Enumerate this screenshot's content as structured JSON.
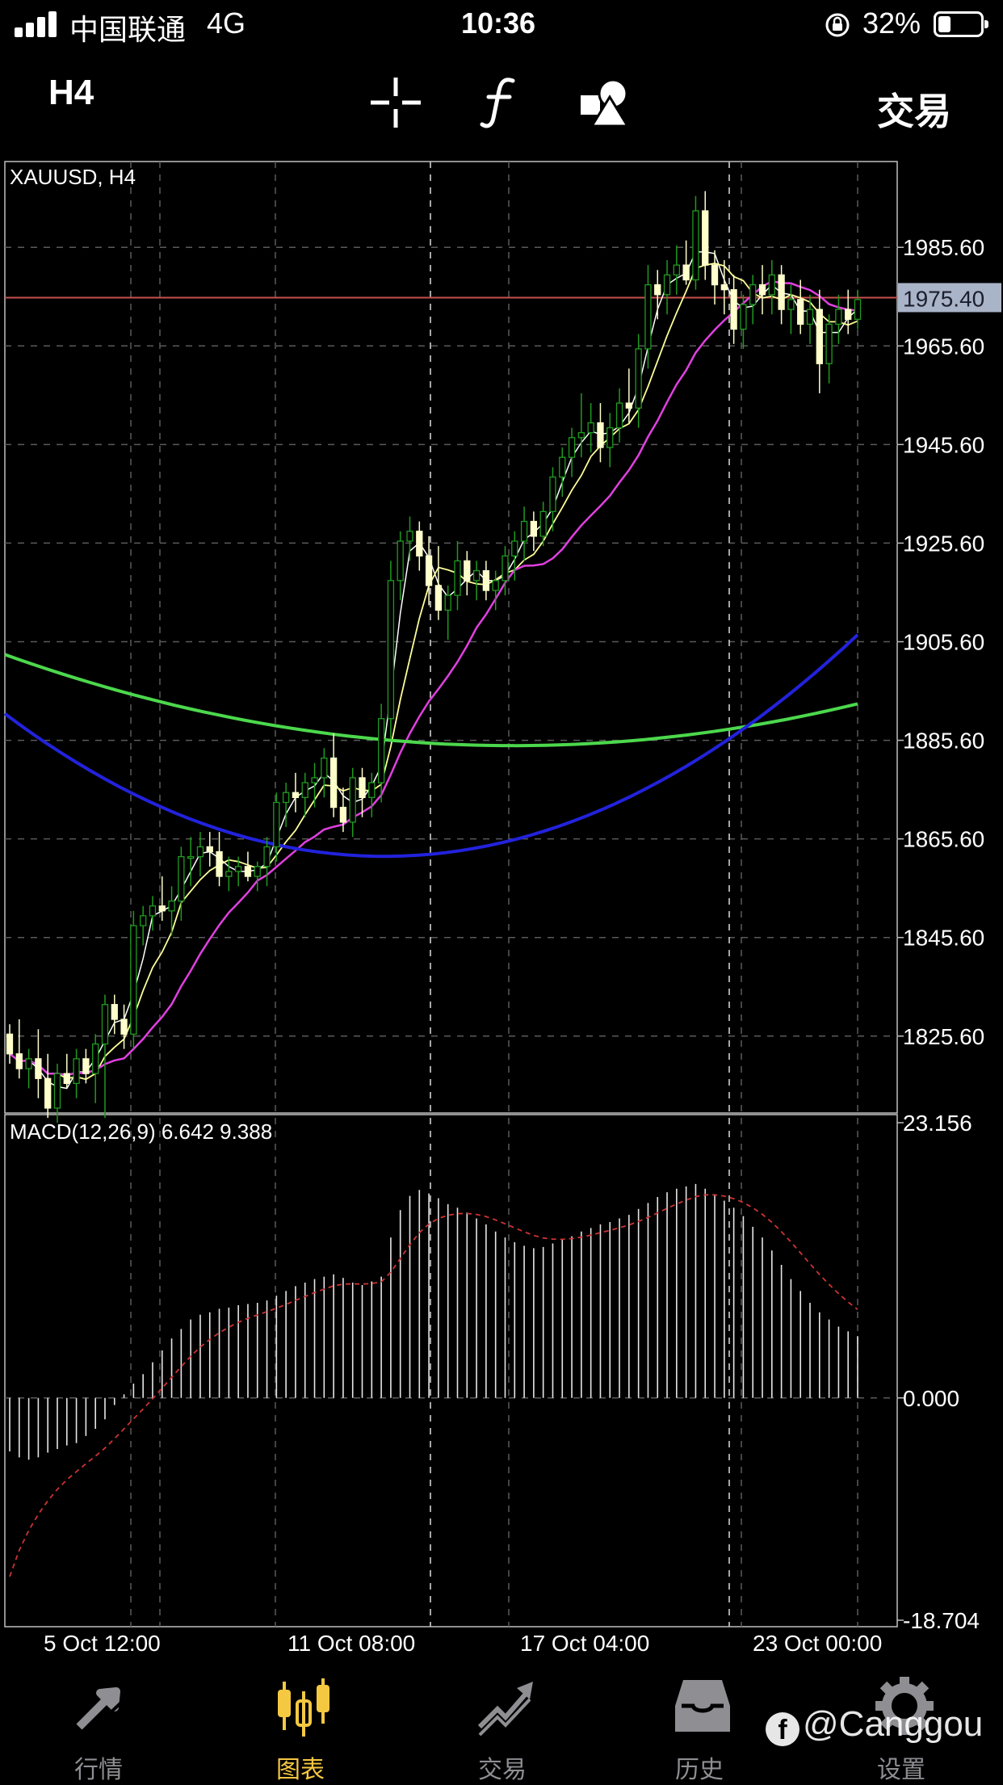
{
  "status_bar": {
    "carrier": "中国联通",
    "network": "4G",
    "time": "10:36",
    "battery": "32%",
    "battery_level": 0.32
  },
  "toolbar": {
    "timeframe": "H4",
    "crosshair_icon": "crosshair-icon",
    "indicator_icon": "function-icon",
    "objects_icon": "shapes-icon",
    "trade_label": "交易"
  },
  "chart_data": [
    {
      "type": "candlestick",
      "title": "XAUUSD, H4",
      "symbol": "XAUUSD",
      "timeframe": "H4",
      "y_ticks": [
        "1985.60",
        "1965.60",
        "1945.60",
        "1925.60",
        "1905.60",
        "1885.60",
        "1865.60",
        "1845.60",
        "1825.60"
      ],
      "ylim": [
        1810,
        2003
      ],
      "current_price": "1975.40",
      "x_ticks": [
        "5 Oct 12:00",
        "11 Oct 08:00",
        "17 Oct 04:00",
        "23 Oct 00:00"
      ],
      "grid": true,
      "colors": {
        "bull": "#1f9a1f",
        "bear": "#ffffcc",
        "ma_fast": "#ffffff",
        "ma_mid": "#ffff99",
        "ma_slow": "#e040e0",
        "ma_green": "#4cd84c",
        "ma_blue": "#2222dd",
        "price_line": "#c85050"
      },
      "candles": [
        [
          1826,
          1828,
          1820,
          1822
        ],
        [
          1822,
          1829,
          1817,
          1819
        ],
        [
          1819,
          1823,
          1815,
          1821
        ],
        [
          1821,
          1827,
          1813,
          1817
        ],
        [
          1817,
          1822,
          1809,
          1811
        ],
        [
          1811,
          1820,
          1808,
          1818
        ],
        [
          1818,
          1822,
          1815,
          1816
        ],
        [
          1816,
          1823,
          1813,
          1821
        ],
        [
          1821,
          1823,
          1816,
          1818
        ],
        [
          1818,
          1826,
          1812,
          1824
        ],
        [
          1824,
          1834,
          1809,
          1832
        ],
        [
          1832,
          1834,
          1826,
          1829
        ],
        [
          1829,
          1832,
          1823,
          1826
        ],
        [
          1826,
          1851,
          1823,
          1848
        ],
        [
          1848,
          1852,
          1844,
          1850
        ],
        [
          1850,
          1854,
          1847,
          1852
        ],
        [
          1852,
          1858,
          1849,
          1851
        ],
        [
          1851,
          1856,
          1846,
          1853
        ],
        [
          1853,
          1864,
          1849,
          1862
        ],
        [
          1862,
          1866,
          1856,
          1862
        ],
        [
          1862,
          1867,
          1858,
          1864
        ],
        [
          1864,
          1867,
          1860,
          1863
        ],
        [
          1863,
          1867,
          1856,
          1858
        ],
        [
          1858,
          1862,
          1855,
          1859
        ],
        [
          1859,
          1862,
          1856,
          1860
        ],
        [
          1860,
          1863,
          1857,
          1858
        ],
        [
          1858,
          1861,
          1855,
          1860
        ],
        [
          1860,
          1866,
          1856,
          1864
        ],
        [
          1864,
          1875,
          1861,
          1873
        ],
        [
          1873,
          1877,
          1868,
          1875
        ],
        [
          1875,
          1879,
          1871,
          1874
        ],
        [
          1874,
          1879,
          1870,
          1877
        ],
        [
          1877,
          1881,
          1872,
          1878
        ],
        [
          1878,
          1884,
          1874,
          1882
        ],
        [
          1882,
          1887,
          1870,
          1872
        ],
        [
          1872,
          1876,
          1867,
          1869
        ],
        [
          1869,
          1880,
          1866,
          1878
        ],
        [
          1878,
          1880,
          1870,
          1874
        ],
        [
          1874,
          1879,
          1870,
          1877
        ],
        [
          1877,
          1893,
          1873,
          1890
        ],
        [
          1890,
          1922,
          1886,
          1918
        ],
        [
          1918,
          1928,
          1914,
          1926
        ],
        [
          1926,
          1931,
          1922,
          1928
        ],
        [
          1928,
          1930,
          1920,
          1923
        ],
        [
          1923,
          1927,
          1913,
          1917
        ],
        [
          1917,
          1925,
          1910,
          1912
        ],
        [
          1912,
          1917,
          1906,
          1915
        ],
        [
          1915,
          1926,
          1912,
          1922
        ],
        [
          1922,
          1924,
          1915,
          1918
        ],
        [
          1918,
          1922,
          1914,
          1920
        ],
        [
          1920,
          1922,
          1914,
          1916
        ],
        [
          1916,
          1920,
          1912,
          1918
        ],
        [
          1918,
          1925,
          1915,
          1923
        ],
        [
          1923,
          1928,
          1918,
          1926
        ],
        [
          1926,
          1933,
          1922,
          1930
        ],
        [
          1930,
          1932,
          1924,
          1927
        ],
        [
          1927,
          1934,
          1925,
          1932
        ],
        [
          1932,
          1941,
          1928,
          1939
        ],
        [
          1939,
          1945,
          1935,
          1943
        ],
        [
          1943,
          1949,
          1939,
          1947
        ],
        [
          1947,
          1956,
          1943,
          1948
        ],
        [
          1948,
          1954,
          1944,
          1950
        ],
        [
          1950,
          1954,
          1942,
          1945
        ],
        [
          1945,
          1952,
          1941,
          1949
        ],
        [
          1949,
          1957,
          1946,
          1954
        ],
        [
          1954,
          1961,
          1950,
          1953
        ],
        [
          1953,
          1968,
          1949,
          1965
        ],
        [
          1965,
          1982,
          1961,
          1978
        ],
        [
          1978,
          1981,
          1971,
          1976
        ],
        [
          1976,
          1983,
          1972,
          1980
        ],
        [
          1980,
          1986,
          1976,
          1982
        ],
        [
          1982,
          1987,
          1978,
          1979
        ],
        [
          1979,
          1996,
          1977,
          1993
        ],
        [
          1993,
          1997,
          1979,
          1982
        ],
        [
          1982,
          1985,
          1974,
          1978
        ],
        [
          1978,
          1983,
          1972,
          1977
        ],
        [
          1977,
          1980,
          1966,
          1969
        ],
        [
          1969,
          1976,
          1965,
          1974
        ],
        [
          1974,
          1980,
          1970,
          1978
        ],
        [
          1978,
          1982,
          1972,
          1976
        ],
        [
          1976,
          1983,
          1972,
          1980
        ],
        [
          1980,
          1982,
          1970,
          1973
        ],
        [
          1973,
          1978,
          1968,
          1975
        ],
        [
          1975,
          1979,
          1968,
          1970
        ],
        [
          1970,
          1976,
          1966,
          1973
        ],
        [
          1973,
          1977,
          1956,
          1962
        ],
        [
          1962,
          1972,
          1958,
          1970
        ],
        [
          1970,
          1976,
          1966,
          1973
        ],
        [
          1973,
          1977,
          1968,
          1971
        ],
        [
          1971,
          1977,
          1969,
          1975
        ]
      ]
    },
    {
      "type": "bar",
      "title": "MACD(12,26,9) 6.642 9.388",
      "y_ticks": [
        "23.156",
        "0.000",
        "-18.704"
      ],
      "ylim": [
        -18.704,
        23.156
      ],
      "histogram": [
        -4.5,
        -5.0,
        -5.2,
        -5.0,
        -4.6,
        -4.3,
        -4.0,
        -3.8,
        -3.2,
        -2.6,
        -1.8,
        -0.6,
        0.3,
        1.2,
        2.0,
        3.0,
        4.0,
        5.0,
        5.8,
        6.6,
        7.0,
        7.2,
        7.5,
        7.6,
        7.8,
        7.9,
        8.0,
        8.2,
        8.6,
        9.0,
        9.4,
        9.7,
        10.0,
        10.2,
        10.4,
        10.1,
        9.7,
        9.5,
        9.8,
        10.2,
        13.5,
        15.8,
        17.0,
        17.5,
        17.2,
        16.8,
        16.3,
        16.0,
        15.6,
        15.1,
        14.6,
        14.0,
        13.5,
        13.1,
        12.8,
        12.6,
        12.7,
        13.0,
        13.3,
        13.6,
        14.0,
        14.3,
        14.6,
        14.8,
        15.1,
        15.4,
        15.9,
        16.4,
        16.9,
        17.3,
        17.6,
        17.8,
        18.0,
        17.6,
        17.1,
        16.6,
        16.0,
        15.3,
        14.4,
        13.5,
        12.4,
        11.2,
        10.0,
        9.0,
        8.0,
        7.2,
        6.6,
        6.0,
        5.6,
        5.2
      ]
    }
  ],
  "bottom_nav": {
    "items": [
      {
        "label": "行情",
        "icon": "quotes-arrows-icon",
        "active": false
      },
      {
        "label": "图表",
        "icon": "candlestick-chart-icon",
        "active": true
      },
      {
        "label": "交易",
        "icon": "trade-trend-icon",
        "active": false
      },
      {
        "label": "历史",
        "icon": "history-inbox-icon",
        "active": false
      },
      {
        "label": "设置",
        "icon": "gear-icon",
        "active": false
      }
    ]
  },
  "watermark": "@Canggou"
}
